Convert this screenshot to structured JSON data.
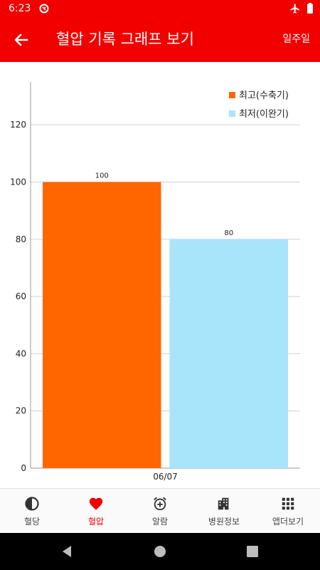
{
  "status_bar": {
    "time": "6:23"
  },
  "app_bar": {
    "title": "혈압 기록 그래프 보기",
    "period": "일주일"
  },
  "chart_data": {
    "type": "bar",
    "categories": [
      "06/07"
    ],
    "series": [
      {
        "name": "최고(수축기)",
        "values": [
          100
        ],
        "color": "#ff6600"
      },
      {
        "name": "최저(이완기)",
        "values": [
          80
        ],
        "color": "#a8e4fa"
      }
    ],
    "ylim": [
      0,
      135
    ],
    "yticks": [
      0,
      20,
      40,
      60,
      80,
      100,
      120
    ],
    "data_labels": [
      "100",
      "80"
    ],
    "legend": "top-right",
    "grid": true
  },
  "bottom_nav": {
    "items": [
      {
        "label": "혈당",
        "icon": "half-circle-icon"
      },
      {
        "label": "혈압",
        "icon": "heart-icon"
      },
      {
        "label": "알람",
        "icon": "alarm-clock-icon"
      },
      {
        "label": "병원정보",
        "icon": "building-icon"
      },
      {
        "label": "앱더보기",
        "icon": "grid-apps-icon"
      }
    ],
    "active_index": 1
  },
  "colors": {
    "accent": "#f20000",
    "systolic": "#ff6600",
    "diastolic": "#a8e4fa"
  }
}
